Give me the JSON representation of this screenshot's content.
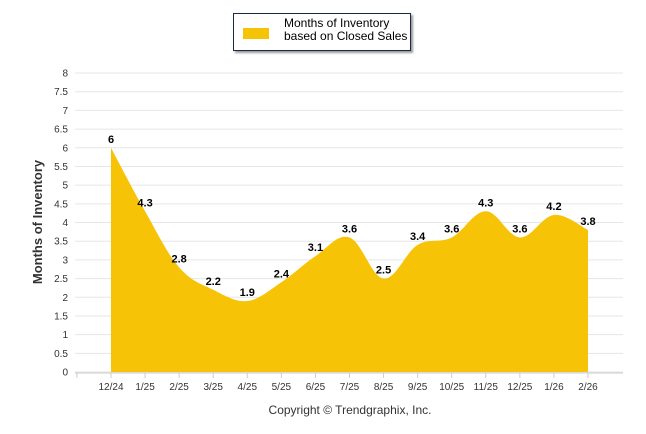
{
  "chart_data": {
    "type": "area",
    "title": "",
    "legend": [
      "Months of Inventory based on Closed Sales"
    ],
    "legend_placement": "top-center",
    "xlabel": "",
    "ylabel": "Months of Inventory",
    "ylim": [
      0,
      8
    ],
    "yticks": [
      "0",
      "0.5",
      "1",
      "1.5",
      "2",
      "2.5",
      "3",
      "3.5",
      "4",
      "4.5",
      "5",
      "5.5",
      "6",
      "6.5",
      "7",
      "7.5",
      "8"
    ],
    "categories": [
      "12/24",
      "1/25",
      "2/25",
      "3/25",
      "4/25",
      "5/25",
      "6/25",
      "7/25",
      "8/25",
      "9/25",
      "10/25",
      "11/25",
      "12/25",
      "1/26",
      "2/26"
    ],
    "values": [
      6,
      4.3,
      2.8,
      2.2,
      1.9,
      2.4,
      3.1,
      3.6,
      2.5,
      3.4,
      3.6,
      4.3,
      3.6,
      4.2,
      3.8
    ],
    "grid": true,
    "color": "#f7c307"
  },
  "copyright": "Copyright © Trendgraphix, Inc."
}
